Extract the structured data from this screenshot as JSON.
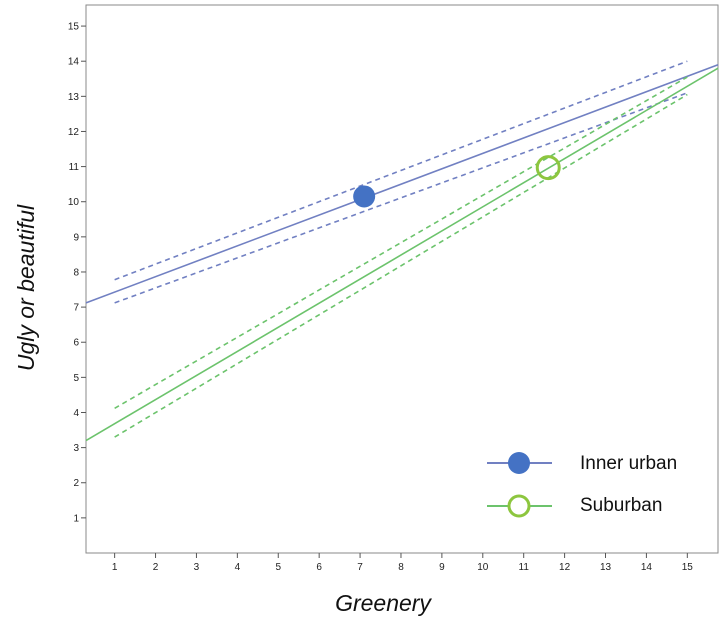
{
  "chart_data": {
    "type": "line",
    "title": "",
    "xlabel": "Greenery",
    "ylabel": "Ugly or beautiful",
    "xlim": [
      0.3,
      15.75
    ],
    "ylim": [
      0,
      15.6
    ],
    "x_ticks": [
      1,
      2,
      3,
      4,
      5,
      6,
      7,
      8,
      9,
      10,
      11,
      12,
      13,
      14,
      15
    ],
    "y_ticks": [
      1,
      2,
      3,
      4,
      5,
      6,
      7,
      8,
      9,
      10,
      11,
      12,
      13,
      14,
      15
    ],
    "grid": false,
    "legend_position": "bottom-right",
    "series": [
      {
        "name": "Inner urban",
        "color": "#7180c2",
        "marker_color": "#4472c4",
        "marker": "filled-circle",
        "fit_line": {
          "x": [
            0.3,
            15.75
          ],
          "y": [
            7.12,
            13.9
          ]
        },
        "ci_upper": {
          "x": [
            1,
            15
          ],
          "y": [
            7.78,
            14.0
          ]
        },
        "ci_lower": {
          "x": [
            1,
            15
          ],
          "y": [
            7.12,
            13.1
          ]
        },
        "mean_point": {
          "x": 7.1,
          "y": 10.15
        }
      },
      {
        "name": "Suburban",
        "color": "#6cc36c",
        "marker_color": "#8dc63f",
        "marker": "hollow-circle",
        "fit_line": {
          "x": [
            0.3,
            15.75
          ],
          "y": [
            3.2,
            13.8
          ]
        },
        "ci_upper": {
          "x": [
            1,
            15
          ],
          "y": [
            4.12,
            13.55
          ]
        },
        "ci_lower": {
          "x": [
            1,
            15
          ],
          "y": [
            3.3,
            13.05
          ]
        },
        "mean_point": {
          "x": 11.6,
          "y": 10.97
        }
      }
    ]
  }
}
